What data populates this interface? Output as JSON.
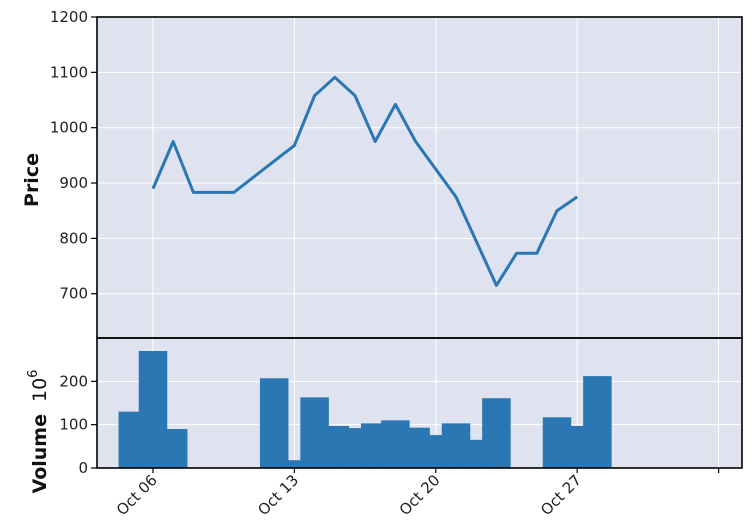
{
  "chart_data": [
    {
      "type": "line",
      "ylabel": "Price",
      "ylim": [
        620,
        1200
      ],
      "yticks": [
        700,
        800,
        900,
        1000,
        1100,
        1200
      ],
      "grid": true,
      "color": "#2a77b4",
      "x": [
        "2018-10-06",
        "2018-10-07",
        "2018-10-08",
        "2018-10-09",
        "2018-10-10",
        "2018-10-11",
        "2018-10-12",
        "2018-10-13",
        "2018-10-14",
        "2018-10-15",
        "2018-10-16",
        "2018-10-17",
        "2018-10-18",
        "2018-10-19",
        "2018-10-20",
        "2018-10-21",
        "2018-10-22",
        "2018-10-23",
        "2018-10-24",
        "2018-10-25",
        "2018-10-26",
        "2018-10-27",
        "2018-10-28",
        "2018-10-29",
        "2018-10-30",
        "2018-10-31",
        "2018-11-01"
      ],
      "values": [
        890,
        975,
        883,
        883,
        883,
        null,
        null,
        968,
        1058,
        1091,
        1058,
        975,
        1042,
        975,
        925,
        875,
        795,
        715,
        773,
        773,
        850,
        875,
        null,
        null,
        null,
        null,
        null
      ]
    },
    {
      "type": "bar",
      "ylabel": "Volume",
      "ylabel_multiplier": "10",
      "ylabel_exponent": "6",
      "ylim": [
        0,
        300
      ],
      "yticks": [
        0,
        100,
        200
      ],
      "grid": true,
      "color": "#2a77b4",
      "x": [
        "2018-10-05",
        "2018-10-06",
        "2018-10-07",
        "2018-10-08",
        "2018-10-12",
        "2018-10-13",
        "2018-10-14",
        "2018-10-15",
        "2018-10-16",
        "2018-10-17",
        "2018-10-18",
        "2018-10-19",
        "2018-10-20",
        "2018-10-21",
        "2018-10-22",
        "2018-10-23",
        "2018-10-26",
        "2018-10-27",
        "2018-10-28",
        "2018-10-29",
        "2018-10-30",
        "2018-11-01"
      ],
      "values": [
        130,
        270,
        90,
        0,
        207,
        18,
        163,
        97,
        92,
        103,
        110,
        93,
        76,
        103,
        65,
        161,
        117,
        97,
        212,
        0,
        0,
        0
      ]
    }
  ],
  "x_axis": {
    "tick_labels": [
      "Oct 06",
      "Oct 13",
      "Oct 20",
      "Oct 27"
    ]
  }
}
